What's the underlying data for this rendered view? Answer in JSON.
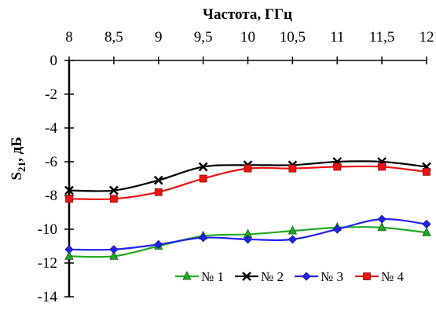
{
  "chart_data": {
    "type": "line",
    "xlabel": "Частота, ГГц",
    "ylabel_main": "S",
    "ylabel_sub": "21",
    "ylabel_rest": ", дБ",
    "x": [
      8,
      8.5,
      9,
      9.5,
      10,
      10.5,
      11,
      11.5,
      12
    ],
    "x_tick_labels": [
      "8",
      "8,5",
      "9",
      "9,5",
      "10",
      "10,5",
      "11",
      "11,5",
      "12"
    ],
    "y_tick_values": [
      0,
      -2,
      -4,
      -6,
      -8,
      -10,
      -12,
      -14
    ],
    "y_tick_labels": [
      "0",
      "-2",
      "-4",
      "-6",
      "-8",
      "-10",
      "-12",
      "-14"
    ],
    "xlim": [
      8,
      12
    ],
    "ylim": [
      -14,
      0
    ],
    "x_axis_position": "top",
    "grid": false,
    "legend_position": "bottom-right",
    "series": [
      {
        "name": "№ 1",
        "color": "#22aa22",
        "marker": "triangle",
        "values": [
          -11.6,
          -11.6,
          -11.0,
          -10.4,
          -10.3,
          -10.1,
          -9.9,
          -9.9,
          -10.2
        ]
      },
      {
        "name": "№ 2",
        "color": "#000000",
        "marker": "x",
        "values": [
          -7.7,
          -7.7,
          -7.1,
          -6.3,
          -6.2,
          -6.2,
          -6.0,
          -6.0,
          -6.3
        ]
      },
      {
        "name": "№ 3",
        "color": "#2222ee",
        "marker": "diamond",
        "values": [
          -11.2,
          -11.2,
          -10.9,
          -10.5,
          -10.6,
          -10.6,
          -10.0,
          -9.4,
          -9.7
        ]
      },
      {
        "name": "№ 4",
        "color": "#ee1111",
        "marker": "square",
        "values": [
          -8.2,
          -8.2,
          -7.8,
          -7.0,
          -6.4,
          -6.4,
          -6.3,
          -6.3,
          -6.6
        ]
      }
    ]
  }
}
